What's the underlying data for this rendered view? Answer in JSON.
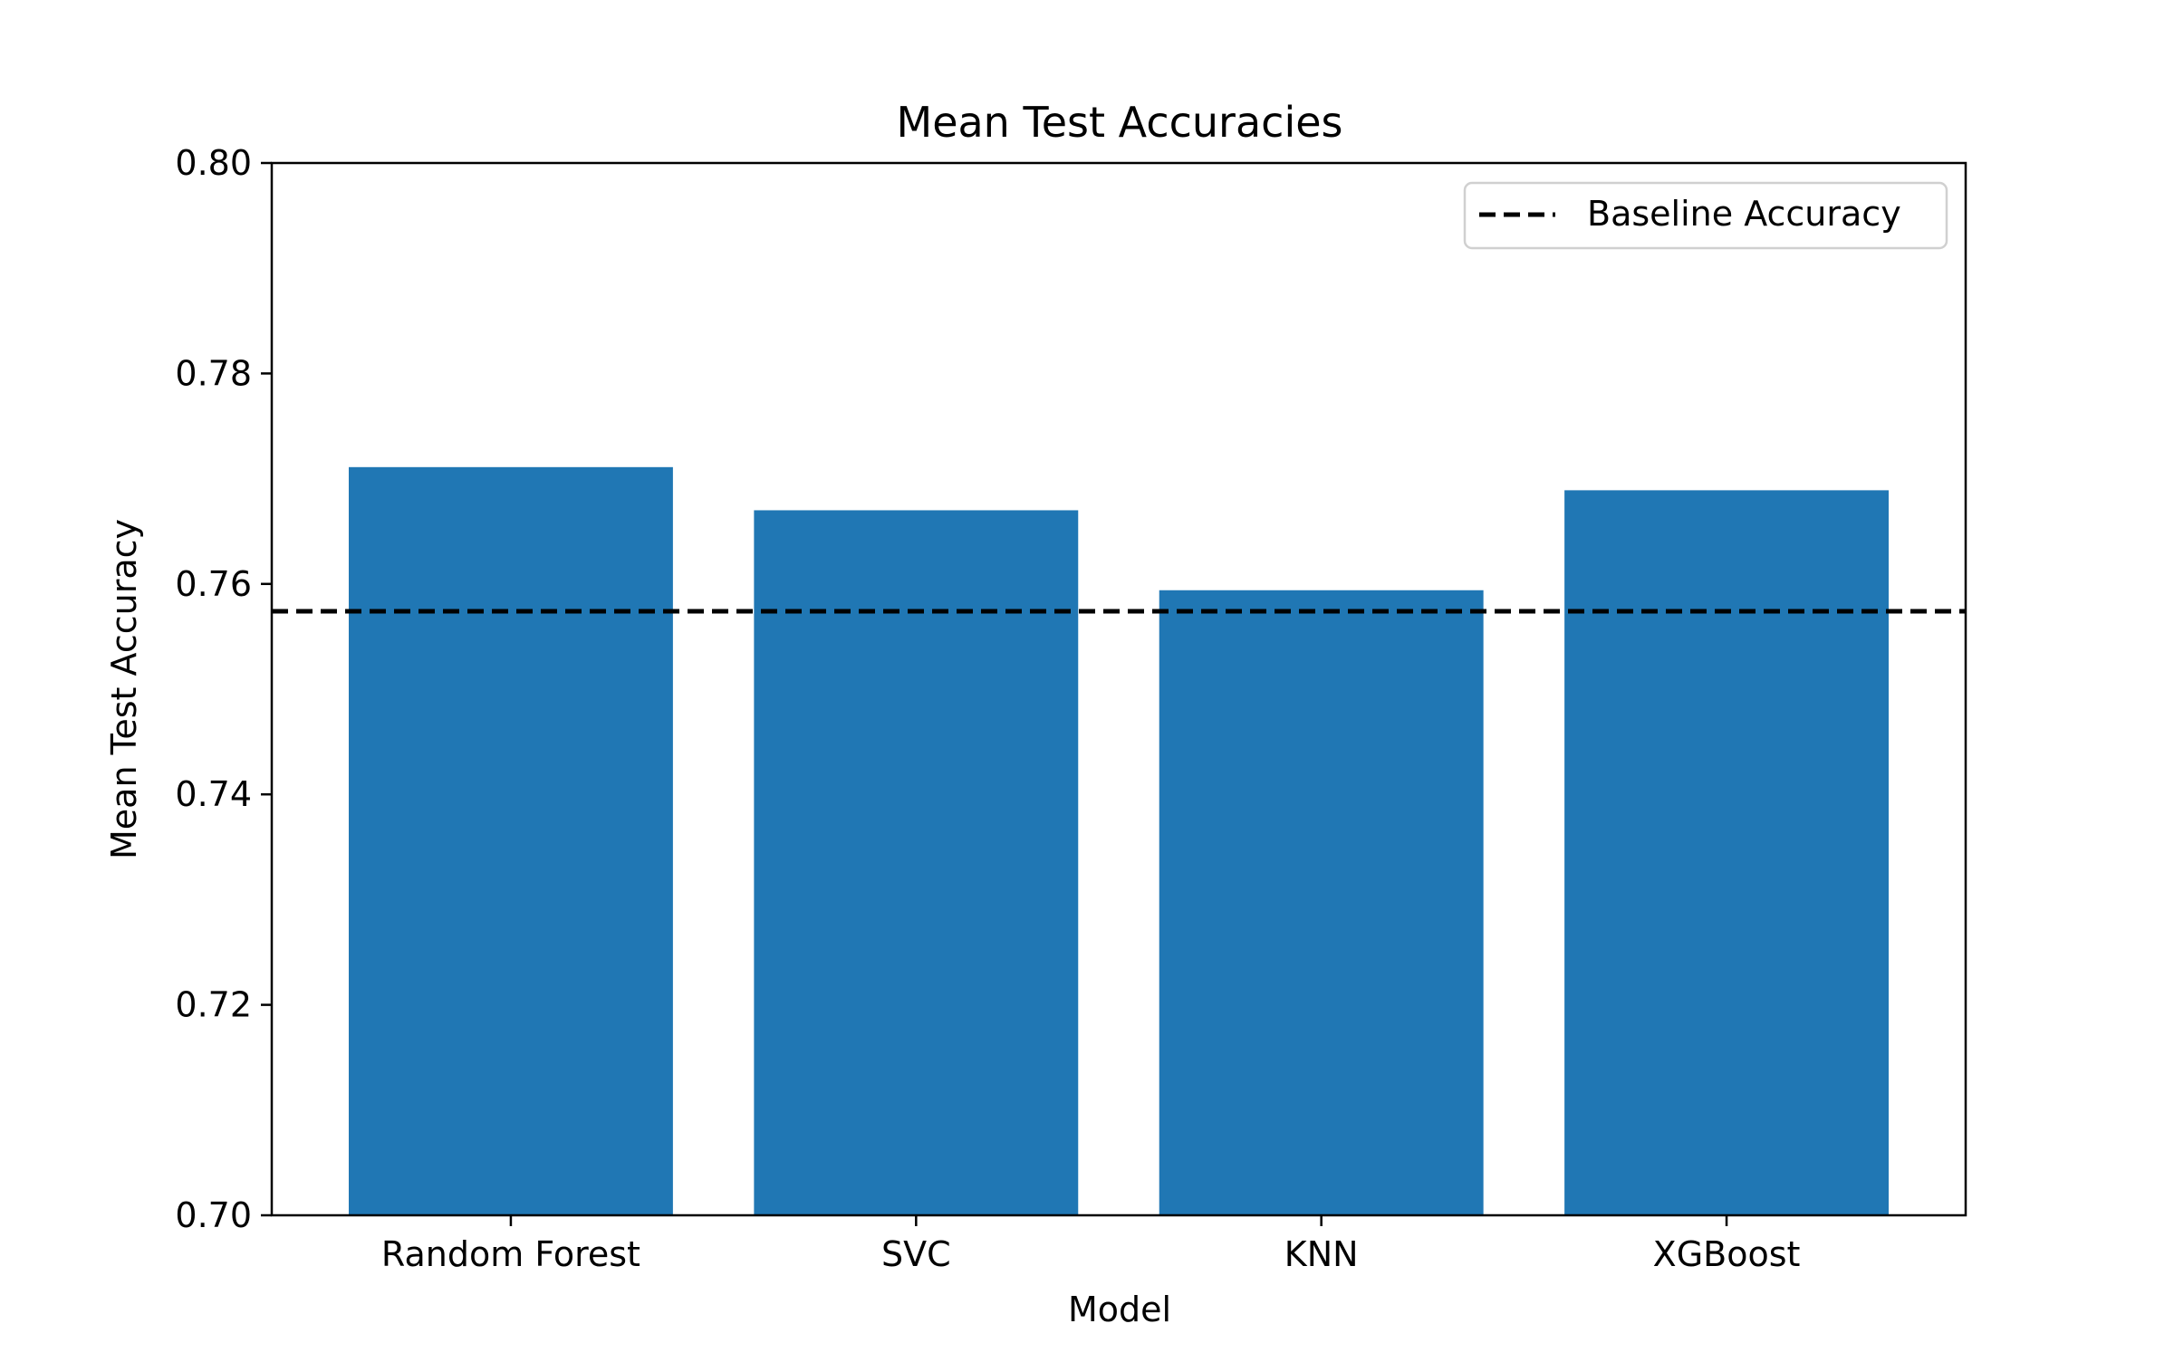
{
  "chart_data": {
    "type": "bar",
    "title": "Mean Test Accuracies",
    "xlabel": "Model",
    "ylabel": "Mean Test Accuracy",
    "categories": [
      "Random Forest",
      "SVC",
      "KNN",
      "XGBoost"
    ],
    "values": [
      0.7711,
      0.767,
      0.7594,
      0.7689
    ],
    "ylim": [
      0.7,
      0.8
    ],
    "yticks": [
      0.7,
      0.72,
      0.74,
      0.76,
      0.78,
      0.8
    ],
    "ytick_labels": [
      "0.70",
      "0.72",
      "0.74",
      "0.76",
      "0.78",
      "0.80"
    ],
    "baseline": {
      "label": "Baseline Accuracy",
      "value": 0.7574,
      "style": "dashed",
      "color": "#000000"
    },
    "bar_color": "#2077b4",
    "grid": false,
    "legend_position": "upper right"
  }
}
